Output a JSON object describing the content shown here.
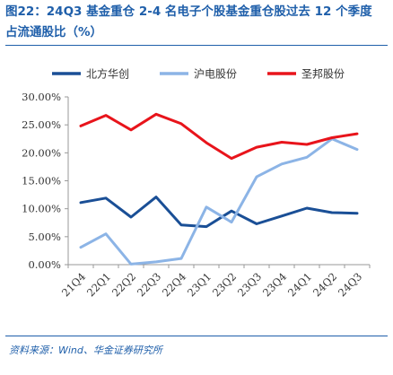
{
  "figure": {
    "title_line1": "图22：24Q3 基金重仓 2-4 名电子个股基金重仓股过去 12 个季度",
    "title_line2": "占流通股比（%）",
    "source": "资料来源：Wind、华金证券研究所"
  },
  "chart_data": {
    "type": "line",
    "categories": [
      "21Q4",
      "22Q1",
      "22Q2",
      "22Q3",
      "22Q4",
      "23Q1",
      "23Q2",
      "23Q3",
      "23Q4",
      "24Q1",
      "24Q2",
      "24Q3"
    ],
    "y_tick_labels": [
      "0.00%",
      "5.00%",
      "10.00%",
      "15.00%",
      "20.00%",
      "25.00%",
      "30.00%"
    ],
    "y_ticks": [
      0,
      5,
      10,
      15,
      20,
      25,
      30
    ],
    "ylim": [
      0,
      30
    ],
    "legend_position": "top",
    "grid": false,
    "series": [
      {
        "name": "北方华创",
        "color": "#1a4f96",
        "values": [
          11.1,
          11.9,
          8.5,
          12.1,
          7.1,
          6.8,
          9.6,
          7.3,
          8.7,
          10.1,
          9.3,
          9.2
        ]
      },
      {
        "name": "沪电股份",
        "color": "#8cb4e6",
        "values": [
          3.1,
          5.5,
          0.1,
          0.5,
          1.1,
          10.3,
          7.6,
          15.7,
          18.0,
          19.2,
          22.5,
          20.6
        ]
      },
      {
        "name": "圣邦股份",
        "color": "#e8141b",
        "values": [
          24.8,
          26.7,
          24.1,
          26.9,
          25.2,
          21.8,
          19.0,
          21.0,
          21.9,
          21.5,
          22.7,
          23.4
        ]
      }
    ]
  }
}
